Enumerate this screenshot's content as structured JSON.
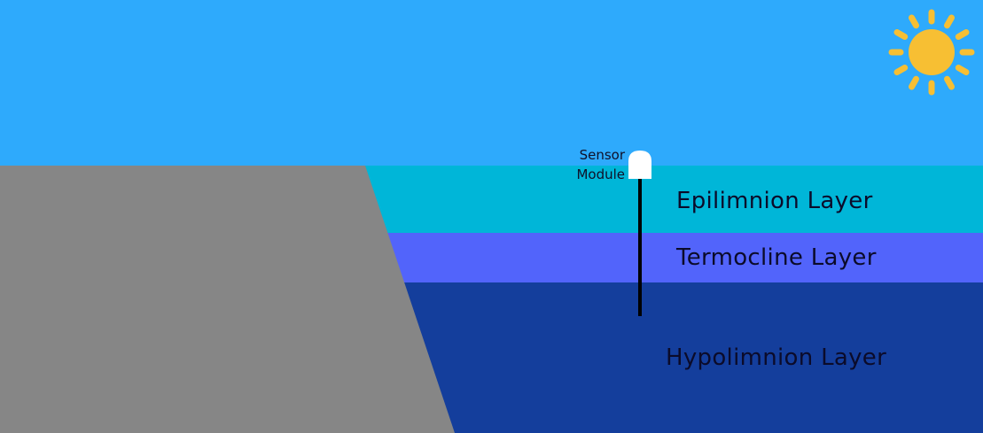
{
  "colors": {
    "sky": "#2eaafc",
    "epilimnion": "#00b6d8",
    "thermocline": "#5264fb",
    "hypolimnion": "#143e9c",
    "shore": "#868686",
    "sun": "#f7bf33",
    "sensor_pole": "#000000",
    "sensor_module": "#ffffff"
  },
  "icons": {
    "sun": "sun-icon",
    "sensor": "sensor-module-icon"
  },
  "sensor": {
    "label_line1": "Sensor",
    "label_line2": "Module"
  },
  "layers": {
    "epilimnion": "Epilimnion Layer",
    "thermocline": "Termocline Layer",
    "hypolimnion": "Hypolimnion Layer"
  }
}
